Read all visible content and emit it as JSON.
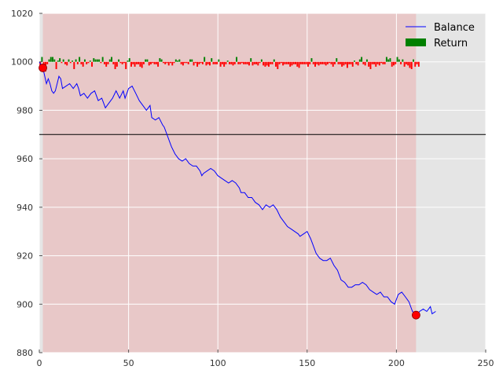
{
  "chart_data": {
    "type": "line",
    "title": "",
    "xlabel": "",
    "ylabel": "",
    "xlim": [
      0,
      250
    ],
    "ylim": [
      880,
      1020
    ],
    "x_ticks": [
      0,
      50,
      100,
      150,
      200,
      250
    ],
    "y_ticks": [
      880,
      900,
      920,
      940,
      960,
      980,
      1000,
      1020
    ],
    "grid": true,
    "legend_position": "top-right",
    "colors": {
      "balance": "#0000ff",
      "return_positive": "#008000",
      "return_negative": "#ff0000",
      "drawdown_span": "#e8c8c8",
      "plot_background": "#e5e5e5",
      "threshold_line": "#000000",
      "marker": "#ff0000"
    },
    "drawdown_span": {
      "x_start": 2,
      "x_end": 211
    },
    "threshold_line": {
      "y": 970
    },
    "markers": [
      {
        "x": 2,
        "y": 997.5
      },
      {
        "x": 211,
        "y": 895.5
      }
    ],
    "series": [
      {
        "name": "Balance",
        "kind": "line",
        "points": [
          [
            0,
            1000
          ],
          [
            2,
            997.5
          ],
          [
            4,
            991
          ],
          [
            5,
            993
          ],
          [
            6,
            991
          ],
          [
            7,
            988
          ],
          [
            8,
            987
          ],
          [
            9,
            988
          ],
          [
            10,
            991
          ],
          [
            11,
            994
          ],
          [
            12,
            993
          ],
          [
            13,
            989
          ],
          [
            15,
            990
          ],
          [
            17,
            991
          ],
          [
            19,
            989
          ],
          [
            21,
            991
          ],
          [
            22,
            989
          ],
          [
            23,
            986
          ],
          [
            25,
            987
          ],
          [
            27,
            985
          ],
          [
            29,
            987
          ],
          [
            31,
            988
          ],
          [
            33,
            984
          ],
          [
            35,
            985
          ],
          [
            37,
            981
          ],
          [
            39,
            983
          ],
          [
            41,
            985
          ],
          [
            43,
            988
          ],
          [
            45,
            985
          ],
          [
            47,
            988
          ],
          [
            48,
            985
          ],
          [
            50,
            989
          ],
          [
            52,
            990
          ],
          [
            54,
            987
          ],
          [
            56,
            984
          ],
          [
            58,
            982
          ],
          [
            60,
            980
          ],
          [
            62,
            982
          ],
          [
            63,
            977
          ],
          [
            65,
            976
          ],
          [
            67,
            977
          ],
          [
            69,
            974
          ],
          [
            70,
            973
          ],
          [
            72,
            969
          ],
          [
            74,
            965
          ],
          [
            76,
            962
          ],
          [
            78,
            960
          ],
          [
            80,
            959
          ],
          [
            82,
            960
          ],
          [
            84,
            958
          ],
          [
            86,
            957
          ],
          [
            88,
            957
          ],
          [
            90,
            955
          ],
          [
            91,
            953
          ],
          [
            92,
            954
          ],
          [
            94,
            955
          ],
          [
            96,
            956
          ],
          [
            98,
            955
          ],
          [
            100,
            953
          ],
          [
            102,
            952
          ],
          [
            104,
            951
          ],
          [
            106,
            950
          ],
          [
            108,
            951
          ],
          [
            110,
            950
          ],
          [
            112,
            948
          ],
          [
            113,
            946
          ],
          [
            115,
            946
          ],
          [
            117,
            944
          ],
          [
            119,
            944
          ],
          [
            121,
            942
          ],
          [
            123,
            941
          ],
          [
            125,
            939
          ],
          [
            127,
            941
          ],
          [
            129,
            940
          ],
          [
            131,
            941
          ],
          [
            133,
            939
          ],
          [
            135,
            936
          ],
          [
            137,
            934
          ],
          [
            139,
            932
          ],
          [
            141,
            931
          ],
          [
            143,
            930
          ],
          [
            145,
            929
          ],
          [
            146,
            928
          ],
          [
            148,
            929
          ],
          [
            150,
            930
          ],
          [
            152,
            927
          ],
          [
            153,
            925
          ],
          [
            155,
            921
          ],
          [
            157,
            919
          ],
          [
            159,
            918
          ],
          [
            161,
            918
          ],
          [
            163,
            919
          ],
          [
            165,
            916
          ],
          [
            167,
            914
          ],
          [
            169,
            910
          ],
          [
            171,
            909
          ],
          [
            173,
            907
          ],
          [
            175,
            907
          ],
          [
            177,
            908
          ],
          [
            179,
            908
          ],
          [
            181,
            909
          ],
          [
            183,
            908
          ],
          [
            185,
            906
          ],
          [
            187,
            905
          ],
          [
            189,
            904
          ],
          [
            191,
            905
          ],
          [
            193,
            903
          ],
          [
            195,
            903
          ],
          [
            197,
            901
          ],
          [
            199,
            900
          ],
          [
            201,
            904
          ],
          [
            203,
            905
          ],
          [
            205,
            903
          ],
          [
            207,
            901
          ],
          [
            209,
            897
          ],
          [
            211,
            895.5
          ],
          [
            213,
            897
          ],
          [
            215,
            898
          ],
          [
            217,
            897
          ],
          [
            219,
            899
          ],
          [
            220,
            896
          ],
          [
            222,
            897
          ]
        ]
      },
      {
        "name": "Return",
        "kind": "bar",
        "baseline": 1000,
        "values": [
          -3,
          2,
          -1,
          -4,
          -1,
          1,
          2,
          2,
          1,
          -3,
          0.5,
          1.5,
          -0.5,
          1,
          -1,
          -1.5,
          1,
          -0.5,
          0.5,
          -3,
          1,
          -1,
          2,
          -1,
          -2,
          1,
          -1,
          -0.5,
          0.5,
          -2,
          1.5,
          1,
          1,
          1,
          -0.5,
          2,
          -1,
          -2,
          -1,
          1,
          2,
          -1,
          -3,
          -2,
          1,
          -0.5,
          -1,
          -0.5,
          -3,
          0.5,
          1.5,
          -2,
          -1,
          -2,
          -1,
          -1,
          -2,
          -2.5,
          -1,
          1,
          1,
          -1.5,
          -1,
          -0.5,
          -1,
          -1,
          -2,
          1.5,
          1,
          -0.5,
          -1,
          -0.5,
          -1.5,
          -0.5,
          -1.5,
          -0.5,
          1,
          0.5,
          1,
          -1,
          -1.5,
          -0.5,
          -0.5,
          -1,
          1,
          1,
          -1.5,
          -0.5,
          -2,
          -1,
          -0.5,
          -1,
          2,
          -1.5,
          -1,
          -1.5,
          1.5,
          -1,
          -1,
          -1,
          1,
          -2,
          -1,
          -2,
          -1,
          0.5,
          -1,
          -1,
          -1.5,
          -1,
          2,
          -1,
          -1,
          -0.5,
          -1,
          -1,
          -1,
          -1.5,
          1.5,
          -1.5,
          -1,
          -1,
          -1.5,
          -0.5,
          1,
          -1.5,
          -2,
          -1.5,
          -2,
          -1,
          -1,
          1,
          -2,
          -3,
          -1,
          -0.5,
          -1.5,
          -1,
          -1,
          -1,
          -2,
          -1.5,
          -1,
          -1,
          -2,
          -2.5,
          -1,
          -1,
          -1,
          -1,
          -2,
          -1,
          1.5,
          -1,
          -2,
          -1,
          -1.5,
          -1,
          -1,
          -1,
          -1.5,
          -1,
          -0.5,
          -1,
          -2,
          -1,
          1.5,
          -1,
          -1,
          -2,
          -1.5,
          -1,
          -2.5,
          -1,
          -1,
          -2,
          0.5,
          -1,
          -1.5,
          1,
          2,
          -1,
          -1.5,
          1,
          -2,
          -3,
          -1,
          -1,
          -2,
          -1,
          -1.5,
          -0.5,
          -1,
          -1,
          2,
          1,
          1.5,
          -2,
          -1.5,
          -1,
          2,
          1,
          -1,
          1,
          -2,
          -1,
          -1.5,
          -2.5,
          -3,
          1,
          -2,
          -1,
          -2
        ]
      }
    ],
    "legend": [
      "Balance",
      "Return"
    ]
  }
}
